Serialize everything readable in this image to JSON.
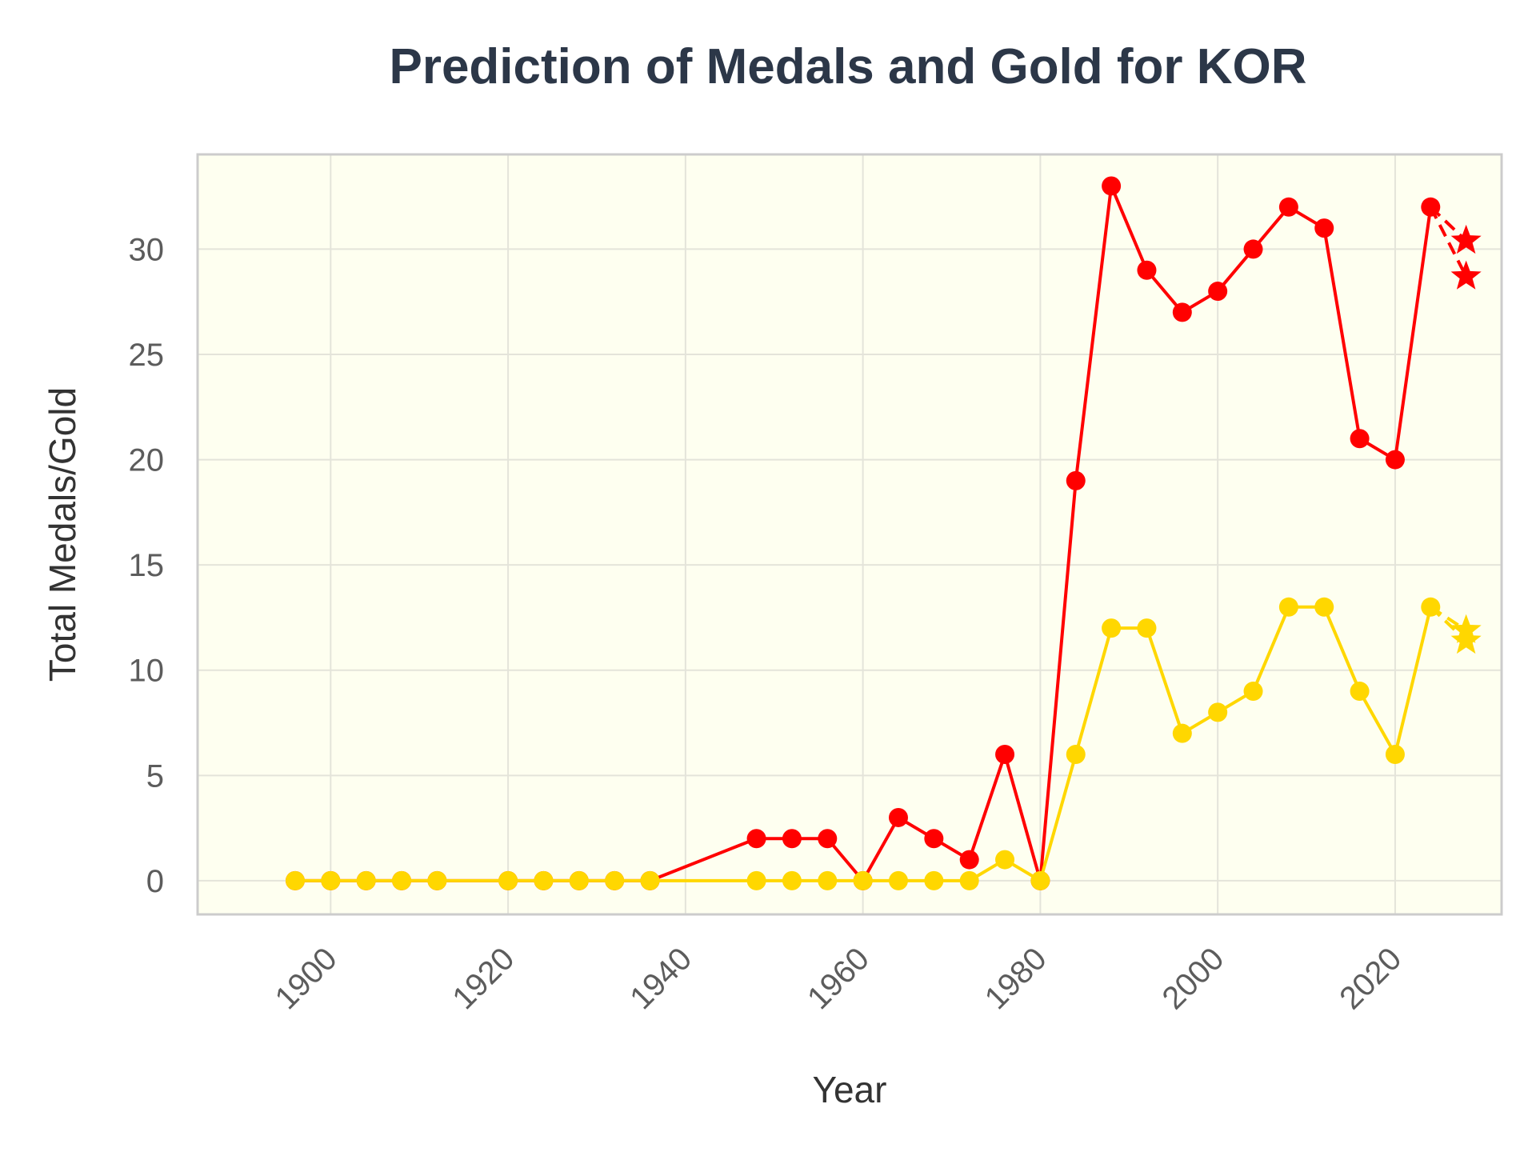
{
  "chart_data": {
    "type": "line",
    "title": "Prediction of Medals and Gold for KOR",
    "xlabel": "Year",
    "ylabel": "Total Medals/Gold",
    "xlim": [
      1885,
      2032
    ],
    "ylim": [
      -1.6,
      34.5
    ],
    "xticks": [
      "1900",
      "1920",
      "1940",
      "1960",
      "1980",
      "2000",
      "2020"
    ],
    "yticks": [
      "0",
      "5",
      "10",
      "15",
      "20",
      "25",
      "30"
    ],
    "grid": true,
    "legend": "none",
    "colors": {
      "plot_background": "#fefff0",
      "frame": "#cccccc",
      "grid": "#e4e4da",
      "title": "#2c3748",
      "tick_label": "#5c5c5c",
      "axis_label": "#333333"
    },
    "series": [
      {
        "color": "#ff0000",
        "x": [
          1896,
          1900,
          1904,
          1908,
          1912,
          1920,
          1924,
          1928,
          1932,
          1936,
          1948,
          1952,
          1956,
          1960,
          1964,
          1968,
          1972,
          1976,
          1980,
          1984,
          1988,
          1992,
          1996,
          2000,
          2004,
          2008,
          2012,
          2016,
          2020,
          2024
        ],
        "y": [
          0,
          0,
          0,
          0,
          0,
          0,
          0,
          0,
          0,
          0,
          2,
          2,
          2,
          0,
          3,
          2,
          1,
          6,
          0,
          19,
          33,
          29,
          27,
          28,
          30,
          32,
          31,
          21,
          20,
          32
        ],
        "prediction": {
          "x": [
            2028,
            2028
          ],
          "y": [
            30.4,
            28.7
          ],
          "marker": "star",
          "line": "dashed"
        }
      },
      {
        "color": "#ffd700",
        "x": [
          1896,
          1900,
          1904,
          1908,
          1912,
          1920,
          1924,
          1928,
          1932,
          1936,
          1948,
          1952,
          1956,
          1960,
          1964,
          1968,
          1972,
          1976,
          1980,
          1984,
          1988,
          1992,
          1996,
          2000,
          2004,
          2008,
          2012,
          2016,
          2020,
          2024
        ],
        "y": [
          0,
          0,
          0,
          0,
          0,
          0,
          0,
          0,
          0,
          0,
          0,
          0,
          0,
          0,
          0,
          0,
          0,
          1,
          0,
          6,
          12,
          12,
          7,
          8,
          9,
          13,
          13,
          9,
          6,
          13
        ],
        "prediction": {
          "x": [
            2028,
            2028
          ],
          "y": [
            11.9,
            11.4
          ],
          "marker": "star",
          "line": "dashed"
        }
      }
    ]
  }
}
